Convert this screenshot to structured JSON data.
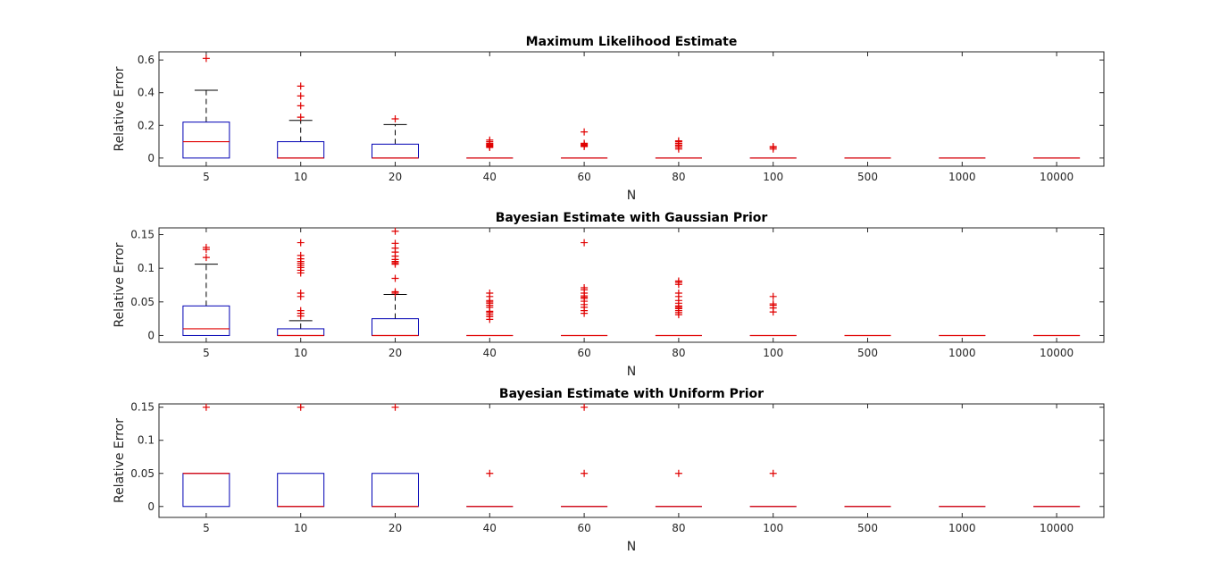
{
  "chart_data": [
    {
      "type": "box",
      "title": "Maximum Likelihood Estimate",
      "xlabel": "N",
      "ylabel": "Relative Error",
      "categories": [
        "5",
        "10",
        "20",
        "40",
        "60",
        "80",
        "100",
        "500",
        "1000",
        "10000"
      ],
      "ylim": [
        -0.05,
        0.65
      ],
      "yticks": [
        0,
        0.2,
        0.4,
        0.6
      ],
      "ytick_labels": [
        "0",
        "0.2",
        "0.4",
        "0.6"
      ],
      "colors": {
        "box": "#0000b4",
        "median": "#e00000",
        "whisker": "#000000",
        "outlier": "#e00000"
      },
      "boxes": [
        {
          "q1": 0,
          "median": 0.1,
          "q3": 0.22,
          "wlow": 0,
          "whigh": 0.415,
          "outliers": [
            0.61
          ]
        },
        {
          "q1": 0,
          "median": 0,
          "q3": 0.1,
          "wlow": 0,
          "whigh": 0.23,
          "outliers": [
            0.25,
            0.32,
            0.38,
            0.44
          ]
        },
        {
          "q1": 0,
          "median": 0,
          "q3": 0.085,
          "wlow": 0,
          "whigh": 0.205,
          "outliers": [
            0.24
          ]
        },
        {
          "q1": 0,
          "median": 0,
          "q3": 0,
          "wlow": 0,
          "whigh": 0,
          "outliers": [
            0.065,
            0.07,
            0.075,
            0.08,
            0.085,
            0.09,
            0.1,
            0.11
          ]
        },
        {
          "q1": 0,
          "median": 0,
          "q3": 0,
          "wlow": 0,
          "whigh": 0,
          "outliers": [
            0.07,
            0.075,
            0.08,
            0.085,
            0.09,
            0.16
          ]
        },
        {
          "q1": 0,
          "median": 0,
          "q3": 0,
          "wlow": 0,
          "whigh": 0,
          "outliers": [
            0.055,
            0.065,
            0.075,
            0.08,
            0.09,
            0.1,
            0.105
          ]
        },
        {
          "q1": 0,
          "median": 0,
          "q3": 0,
          "wlow": 0,
          "whigh": 0,
          "outliers": [
            0.055,
            0.065,
            0.07
          ]
        },
        {
          "q1": 0,
          "median": 0,
          "q3": 0,
          "wlow": 0,
          "whigh": 0,
          "outliers": []
        },
        {
          "q1": 0,
          "median": 0,
          "q3": 0,
          "wlow": 0,
          "whigh": 0,
          "outliers": []
        },
        {
          "q1": 0,
          "median": 0,
          "q3": 0,
          "wlow": 0,
          "whigh": 0,
          "outliers": []
        }
      ]
    },
    {
      "type": "box",
      "title": "Bayesian Estimate with Gaussian Prior",
      "xlabel": "N",
      "ylabel": "Relative Error",
      "categories": [
        "5",
        "10",
        "20",
        "40",
        "60",
        "80",
        "100",
        "500",
        "1000",
        "10000"
      ],
      "ylim": [
        -0.01,
        0.16
      ],
      "yticks": [
        0,
        0.05,
        0.1,
        0.15
      ],
      "ytick_labels": [
        "0",
        "0.05",
        "0.1",
        "0.15"
      ],
      "colors": {
        "box": "#0000b4",
        "median": "#e00000",
        "whisker": "#000000",
        "outlier": "#e00000"
      },
      "boxes": [
        {
          "q1": 0,
          "median": 0.01,
          "q3": 0.044,
          "wlow": 0,
          "whigh": 0.106,
          "outliers": [
            0.116,
            0.128,
            0.131
          ]
        },
        {
          "q1": 0,
          "median": 0,
          "q3": 0.01,
          "wlow": 0,
          "whigh": 0.022,
          "outliers": [
            0.029,
            0.033,
            0.037,
            0.058,
            0.063,
            0.093,
            0.097,
            0.101,
            0.104,
            0.107,
            0.11,
            0.114,
            0.119,
            0.138
          ]
        },
        {
          "q1": 0,
          "median": 0,
          "q3": 0.025,
          "wlow": 0,
          "whigh": 0.061,
          "outliers": [
            0.063,
            0.065,
            0.085,
            0.106,
            0.108,
            0.11,
            0.113,
            0.118,
            0.124,
            0.13,
            0.137,
            0.155
          ]
        },
        {
          "q1": 0,
          "median": 0,
          "q3": 0,
          "wlow": 0,
          "whigh": 0,
          "outliers": [
            0.024,
            0.028,
            0.031,
            0.034,
            0.036,
            0.042,
            0.045,
            0.048,
            0.05,
            0.052,
            0.058,
            0.063
          ]
        },
        {
          "q1": 0,
          "median": 0,
          "q3": 0,
          "wlow": 0,
          "whigh": 0,
          "outliers": [
            0.033,
            0.037,
            0.042,
            0.046,
            0.051,
            0.055,
            0.057,
            0.059,
            0.063,
            0.068,
            0.071,
            0.138
          ]
        },
        {
          "q1": 0,
          "median": 0,
          "q3": 0,
          "wlow": 0,
          "whigh": 0,
          "outliers": [
            0.031,
            0.034,
            0.037,
            0.04,
            0.042,
            0.044,
            0.048,
            0.052,
            0.058,
            0.063,
            0.076,
            0.079,
            0.081
          ]
        },
        {
          "q1": 0,
          "median": 0,
          "q3": 0,
          "wlow": 0,
          "whigh": 0,
          "outliers": [
            0.035,
            0.041,
            0.045,
            0.047,
            0.058
          ]
        },
        {
          "q1": 0,
          "median": 0,
          "q3": 0,
          "wlow": 0,
          "whigh": 0,
          "outliers": []
        },
        {
          "q1": 0,
          "median": 0,
          "q3": 0,
          "wlow": 0,
          "whigh": 0,
          "outliers": []
        },
        {
          "q1": 0,
          "median": 0,
          "q3": 0,
          "wlow": 0,
          "whigh": 0,
          "outliers": []
        }
      ]
    },
    {
      "type": "box",
      "title": "Bayesian Estimate with Uniform Prior",
      "xlabel": "N",
      "ylabel": "Relative Error",
      "categories": [
        "5",
        "10",
        "20",
        "40",
        "60",
        "80",
        "100",
        "500",
        "1000",
        "10000"
      ],
      "ylim": [
        -0.0165,
        0.155
      ],
      "yticks": [
        0,
        0.05,
        0.1,
        0.15
      ],
      "ytick_labels": [
        "0",
        "0.05",
        "0.1",
        "0.15"
      ],
      "colors": {
        "box": "#0000b4",
        "median": "#e00000",
        "whisker": "#000000",
        "outlier": "#e00000"
      },
      "boxes": [
        {
          "q1": 0,
          "median": 0.05,
          "q3": 0.05,
          "wlow": 0,
          "whigh": 0.05,
          "outliers": [
            0.15
          ]
        },
        {
          "q1": 0,
          "median": 0,
          "q3": 0.05,
          "wlow": 0,
          "whigh": 0.05,
          "outliers": [
            0.15
          ]
        },
        {
          "q1": 0,
          "median": 0,
          "q3": 0.05,
          "wlow": 0,
          "whigh": 0.05,
          "outliers": [
            0.15
          ]
        },
        {
          "q1": 0,
          "median": 0,
          "q3": 0,
          "wlow": 0,
          "whigh": 0,
          "outliers": [
            0.05
          ]
        },
        {
          "q1": 0,
          "median": 0,
          "q3": 0,
          "wlow": 0,
          "whigh": 0,
          "outliers": [
            0.05,
            0.15
          ]
        },
        {
          "q1": 0,
          "median": 0,
          "q3": 0,
          "wlow": 0,
          "whigh": 0,
          "outliers": [
            0.05
          ]
        },
        {
          "q1": 0,
          "median": 0,
          "q3": 0,
          "wlow": 0,
          "whigh": 0,
          "outliers": [
            0.05
          ]
        },
        {
          "q1": 0,
          "median": 0,
          "q3": 0,
          "wlow": 0,
          "whigh": 0,
          "outliers": []
        },
        {
          "q1": 0,
          "median": 0,
          "q3": 0,
          "wlow": 0,
          "whigh": 0,
          "outliers": []
        },
        {
          "q1": 0,
          "median": 0,
          "q3": 0,
          "wlow": 0,
          "whigh": 0,
          "outliers": []
        }
      ]
    }
  ]
}
